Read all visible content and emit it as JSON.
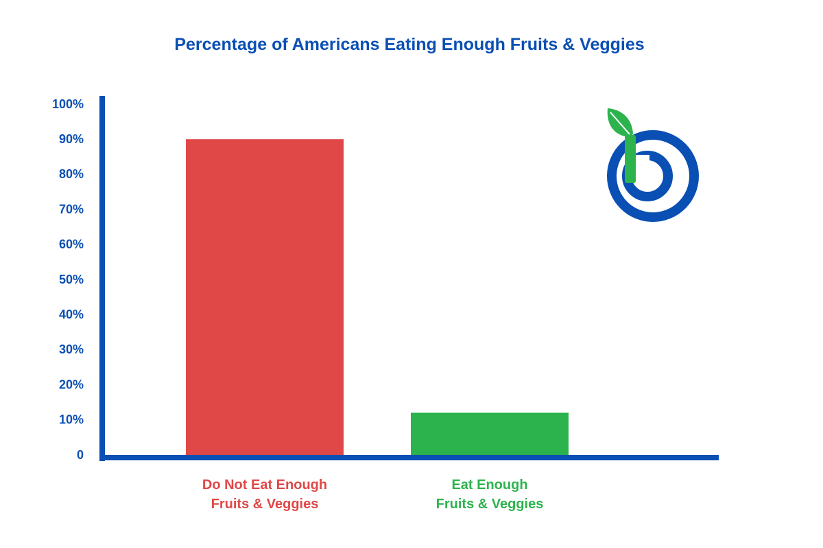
{
  "chart_data": {
    "type": "bar",
    "title": "Percentage of Americans Eating Enough Fruits & Veggies",
    "xlabel": "",
    "ylabel": "",
    "categories": [
      [
        "Do Not Eat Enough",
        "Fruits & Veggies"
      ],
      [
        "Eat Enough",
        "Fruits & Veggies"
      ]
    ],
    "values": [
      90,
      12
    ],
    "bar_colors": [
      "#e04848",
      "#2db34e"
    ],
    "yticks": [
      "0",
      "10%",
      "20%",
      "30%",
      "40%",
      "50%",
      "60%",
      "70%",
      "80%",
      "90%",
      "100%"
    ],
    "ylim": [
      0,
      100
    ],
    "grid": false,
    "legend": "none"
  },
  "colors": {
    "axis": "#0a4fb3",
    "title": "#0a4fb3",
    "tick_labels": "#0a4fb3",
    "logo_blue": "#0a4fb3",
    "logo_green": "#2db34e"
  },
  "logo": {
    "icon": "leaf-letter-b-logo-icon"
  }
}
